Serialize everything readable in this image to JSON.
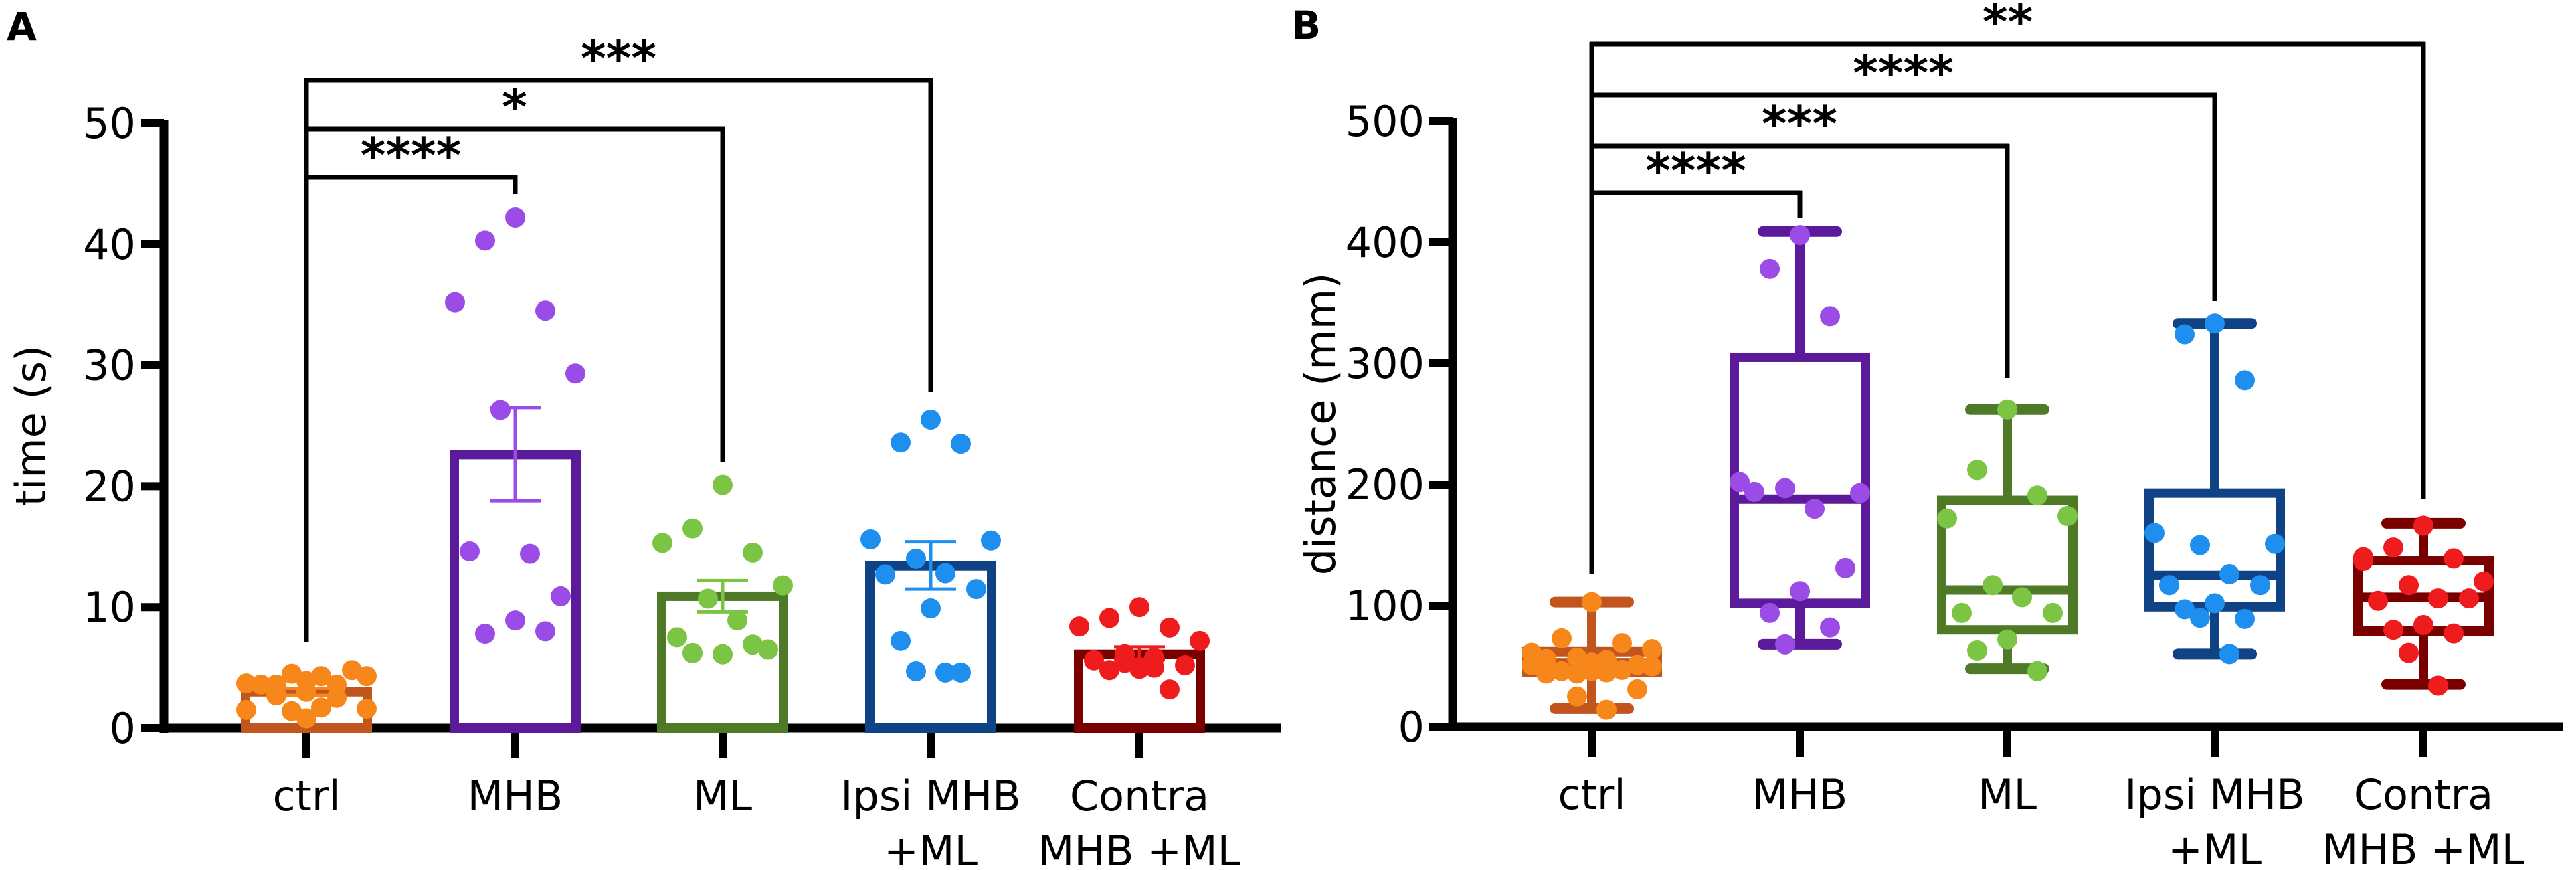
{
  "chart_data": [
    {
      "panel": "A",
      "type": "bar",
      "title": "",
      "xlabel": "",
      "ylabel": "time (s)",
      "ylim": [
        0,
        50
      ],
      "yticks": [
        0,
        10,
        20,
        30,
        40,
        50
      ],
      "grid": false,
      "categories": [
        {
          "line1": "ctrl",
          "line2": ""
        },
        {
          "line1": "MHB",
          "line2": ""
        },
        {
          "line1": "ML",
          "line2": ""
        },
        {
          "line1": "Ipsi MHB",
          "line2": "+ML"
        },
        {
          "line1": "Contra",
          "line2": "MHB +ML"
        }
      ],
      "series": [
        {
          "name": "ctrl",
          "color": "#c0561e",
          "dot_color": "#f7871a",
          "mean": 3.0,
          "sem": [
            2.7,
            3.3
          ],
          "points": [
            3.9,
            3.6,
            3.6,
            3.7,
            4.3,
            4.5,
            4.3,
            3.6,
            4.8,
            3.0,
            2.7,
            2.5,
            1.4,
            1.7,
            1.5,
            1.6,
            0.8
          ]
        },
        {
          "name": "MHB",
          "color": "#5b1a99",
          "dot_color": "#9b4be6",
          "mean": 22.6,
          "sem": [
            18.8,
            26.5
          ],
          "points": [
            42.2,
            40.3,
            34.5,
            35.2,
            29.3,
            26.3,
            14.4,
            14.6,
            10.9,
            8.9,
            7.8,
            8.0
          ]
        },
        {
          "name": "ML",
          "color": "#4e7a28",
          "dot_color": "#7cc444",
          "mean": 10.9,
          "sem": [
            9.6,
            12.2
          ],
          "points": [
            20.1,
            16.5,
            14.5,
            15.3,
            11.8,
            10.7,
            8.9,
            7.5,
            6.5,
            6.1,
            6.2,
            6.9
          ]
        },
        {
          "name": "Ipsi MHB +ML",
          "color": "#0f4385",
          "dot_color": "#1e8fef",
          "mean": 13.4,
          "sem": [
            11.5,
            15.4
          ],
          "points": [
            25.5,
            23.6,
            23.5,
            15.6,
            15.5,
            14.0,
            12.8,
            12.7,
            11.5,
            9.9,
            7.2,
            4.6,
            4.7,
            4.6
          ]
        },
        {
          "name": "Contra MHB +ML",
          "color": "#7a0000",
          "dot_color": "#ee1c1c",
          "mean": 6.1,
          "sem": [
            5.7,
            6.7
          ],
          "points": [
            10.0,
            9.1,
            8.3,
            8.4,
            7.2,
            6.1,
            5.8,
            5.6,
            5.2,
            4.9,
            4.8,
            3.2,
            5.4,
            5.0
          ]
        }
      ],
      "comparisons": [
        {
          "from": 0,
          "to": 1,
          "label": "****"
        },
        {
          "from": 0,
          "to": 2,
          "label": "*"
        },
        {
          "from": 0,
          "to": 3,
          "label": "***"
        }
      ]
    },
    {
      "panel": "B",
      "type": "box",
      "title": "",
      "xlabel": "",
      "ylabel": "distance (mm)",
      "ylim": [
        0,
        500
      ],
      "yticks": [
        0,
        100,
        200,
        300,
        400,
        500
      ],
      "grid": false,
      "categories": [
        {
          "line1": "ctrl",
          "line2": ""
        },
        {
          "line1": "MHB",
          "line2": ""
        },
        {
          "line1": "ML",
          "line2": ""
        },
        {
          "line1": "Ipsi MHB",
          "line2": "+ML"
        },
        {
          "line1": "Contra",
          "line2": "MHB +ML"
        }
      ],
      "series": [
        {
          "name": "ctrl",
          "color": "#c0561e",
          "dot_color": "#f7871a",
          "min": 15,
          "q1": 45,
          "median": 53,
          "q3": 62,
          "max": 103,
          "points": [
            103,
            73,
            69,
            61,
            64,
            57,
            55,
            56,
            51,
            46,
            46,
            47,
            44,
            45,
            51,
            50,
            53,
            44,
            31,
            25,
            14
          ]
        },
        {
          "name": "MHB",
          "color": "#5b1a99",
          "dot_color": "#9b4be6",
          "min": 68,
          "q1": 102,
          "median": 188,
          "q3": 305,
          "max": 409,
          "points": [
            406,
            378,
            339,
            202,
            193,
            197,
            180,
            194,
            131,
            112,
            94,
            82,
            68
          ]
        },
        {
          "name": "ML",
          "color": "#4e7a28",
          "dot_color": "#7cc444",
          "min": 48,
          "q1": 80,
          "median": 113,
          "q3": 187,
          "max": 262,
          "points": [
            262,
            212,
            191,
            172,
            174,
            117,
            107,
            94,
            94,
            72,
            63,
            46
          ]
        },
        {
          "name": "Ipsi MHB +ML",
          "color": "#0f4385",
          "dot_color": "#1e8fef",
          "min": 60,
          "q1": 99,
          "median": 125,
          "q3": 193,
          "max": 333,
          "points": [
            333,
            324,
            286,
            160,
            151,
            150,
            126,
            117,
            117,
            102,
            97,
            89,
            90,
            60
          ]
        },
        {
          "name": "Contra MHB +ML",
          "color": "#7a0000",
          "dot_color": "#ee1c1c",
          "min": 35,
          "q1": 79,
          "median": 107,
          "q3": 137,
          "max": 168,
          "points": [
            166,
            148,
            139,
            137,
            120,
            117,
            106,
            104,
            106,
            84,
            80,
            77,
            61,
            34,
            140
          ]
        }
      ],
      "comparisons": [
        {
          "from": 0,
          "to": 1,
          "label": "****"
        },
        {
          "from": 0,
          "to": 2,
          "label": "***"
        },
        {
          "from": 0,
          "to": 3,
          "label": "****"
        },
        {
          "from": 0,
          "to": 4,
          "label": "**"
        }
      ]
    }
  ]
}
